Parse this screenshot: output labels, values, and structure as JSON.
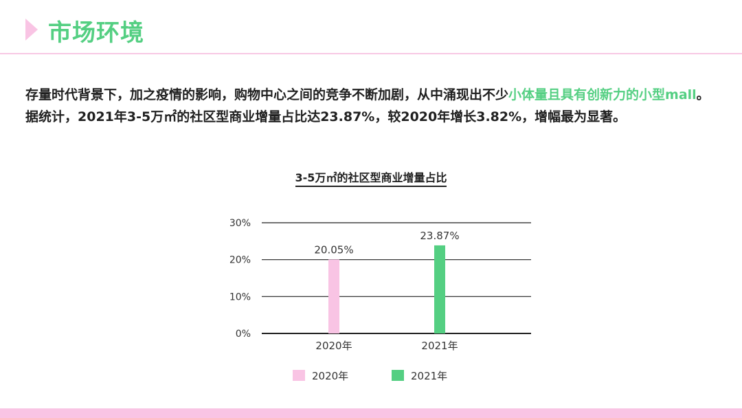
{
  "header": {
    "title": "市场环境"
  },
  "paragraph": {
    "part1": "存量时代背景下，加之疫情的影响，购物中心之间的竞争不断加剧，从中涌现出不少",
    "highlight": "小体量且具有创新力的小型mall",
    "part2": "。据统计，2021年3-5万㎡的社区型商业增量占比达23.87%，较2020年增长3.82%，增幅最为显著。"
  },
  "colors": {
    "accent_green": "#54cf82",
    "accent_pink": "#f9c4e4"
  },
  "chart_data": {
    "type": "bar",
    "title": "3-5万㎡的社区型商业增量占比",
    "categories": [
      "2020年",
      "2021年"
    ],
    "values": [
      20.05,
      23.87
    ],
    "value_labels": [
      "20.05%",
      "23.87%"
    ],
    "bar_colors": [
      "#f9c4e4",
      "#54cf82"
    ],
    "ylim": [
      0,
      30
    ],
    "yticks": [
      "0%",
      "10%",
      "20%",
      "30%"
    ],
    "ytick_values": [
      0,
      10,
      20,
      30
    ],
    "legend": [
      {
        "label": "2020年",
        "color": "#f9c4e4"
      },
      {
        "label": "2021年",
        "color": "#54cf82"
      }
    ],
    "legend_position": "bottom",
    "grid": true,
    "xlabel": "",
    "ylabel": ""
  }
}
